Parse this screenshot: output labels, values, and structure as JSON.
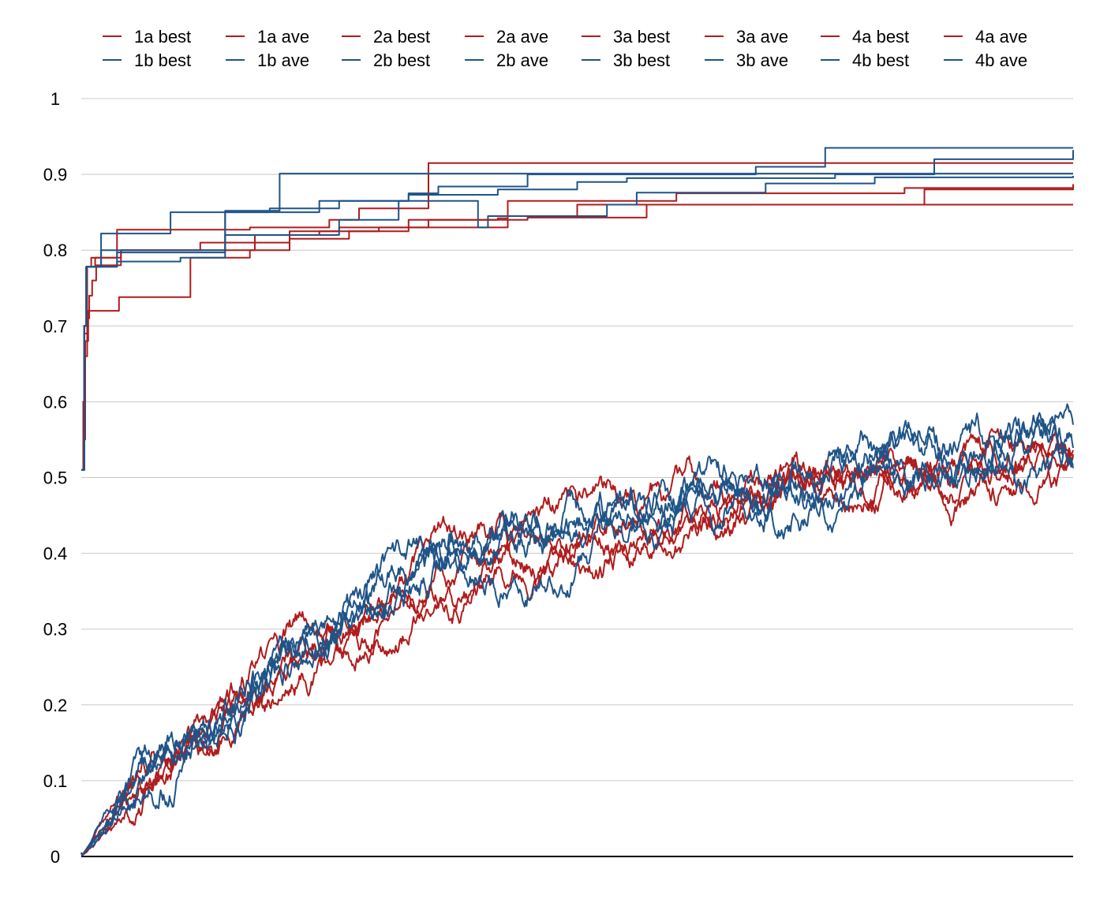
{
  "chart_data": {
    "type": "line",
    "title": "",
    "xlabel": "",
    "ylabel": "",
    "ylim": [
      0,
      1
    ],
    "yticks": [
      "0",
      "0.1",
      "0.2",
      "0.3",
      "0.4",
      "0.5",
      "0.6",
      "0.7",
      "0.8",
      "0.9",
      "1"
    ],
    "grid": "horizontal",
    "legend_position": "top",
    "x_tick_labels": "none",
    "colors": {
      "a_series": "#b01c1c",
      "b_series": "#1f5488",
      "grid": "#c8c8c8",
      "axis": "#000000"
    },
    "x_range": [
      0,
      1000
    ],
    "series": [
      {
        "name": "1a best",
        "group": "a",
        "kind": "best",
        "steps": [
          [
            0,
            0.51
          ],
          [
            2,
            0.55
          ],
          [
            4,
            0.66
          ],
          [
            6,
            0.71
          ],
          [
            8,
            0.74
          ],
          [
            11,
            0.76
          ],
          [
            15,
            0.78
          ],
          [
            40,
            0.8
          ],
          [
            120,
            0.81
          ],
          [
            210,
            0.825
          ],
          [
            260,
            0.83
          ],
          [
            350,
            0.84
          ],
          [
            450,
            0.843
          ],
          [
            570,
            0.86
          ],
          [
            850,
            0.88
          ],
          [
            1000,
            0.887
          ]
        ]
      },
      {
        "name": "1a ave",
        "group": "a",
        "kind": "ave",
        "asymptote": 0.5,
        "rate": 0.028,
        "noise": 0.03,
        "seed": 11
      },
      {
        "name": "2a best",
        "group": "a",
        "kind": "best",
        "steps": [
          [
            0,
            0.51
          ],
          [
            2,
            0.6
          ],
          [
            4,
            0.68
          ],
          [
            7,
            0.72
          ],
          [
            38,
            0.72
          ],
          [
            38,
            0.738
          ],
          [
            110,
            0.738
          ],
          [
            110,
            0.79
          ],
          [
            170,
            0.8
          ],
          [
            210,
            0.815
          ],
          [
            270,
            0.825
          ],
          [
            330,
            0.84
          ],
          [
            420,
            0.842
          ],
          [
            430,
            0.845
          ],
          [
            500,
            0.86
          ],
          [
            800,
            0.86
          ],
          [
            1000,
            0.86
          ]
        ]
      },
      {
        "name": "2a ave",
        "group": "a",
        "kind": "ave",
        "asymptote": 0.49,
        "rate": 0.024,
        "noise": 0.03,
        "seed": 23
      },
      {
        "name": "3a best",
        "group": "a",
        "kind": "best",
        "steps": [
          [
            0,
            0.51
          ],
          [
            3,
            0.7
          ],
          [
            6,
            0.778
          ],
          [
            10,
            0.79
          ],
          [
            36,
            0.827
          ],
          [
            170,
            0.83
          ],
          [
            250,
            0.84
          ],
          [
            280,
            0.855
          ],
          [
            350,
            0.857
          ],
          [
            350,
            0.915
          ],
          [
            1000,
            0.915
          ]
        ]
      },
      {
        "name": "3a ave",
        "group": "a",
        "kind": "ave",
        "asymptote": 0.51,
        "rate": 0.03,
        "noise": 0.032,
        "seed": 37
      },
      {
        "name": "4a best",
        "group": "a",
        "kind": "best",
        "steps": [
          [
            0,
            0.51
          ],
          [
            3,
            0.69
          ],
          [
            6,
            0.778
          ],
          [
            14,
            0.79
          ],
          [
            40,
            0.8
          ],
          [
            175,
            0.82
          ],
          [
            240,
            0.825
          ],
          [
            300,
            0.83
          ],
          [
            430,
            0.842
          ],
          [
            430,
            0.865
          ],
          [
            600,
            0.875
          ],
          [
            830,
            0.882
          ],
          [
            1000,
            0.887
          ]
        ]
      },
      {
        "name": "4a ave",
        "group": "a",
        "kind": "ave",
        "asymptote": 0.5,
        "rate": 0.026,
        "noise": 0.03,
        "seed": 41
      },
      {
        "name": "1b best",
        "group": "b",
        "kind": "best",
        "steps": [
          [
            0,
            0.51
          ],
          [
            3,
            0.7
          ],
          [
            5,
            0.778
          ],
          [
            20,
            0.778
          ],
          [
            20,
            0.822
          ],
          [
            90,
            0.822
          ],
          [
            90,
            0.85
          ],
          [
            120,
            0.85
          ],
          [
            145,
            0.852
          ],
          [
            200,
            0.852
          ],
          [
            200,
            0.901
          ],
          [
            1000,
            0.901
          ]
        ]
      },
      {
        "name": "1b ave",
        "group": "b",
        "kind": "ave",
        "asymptote": 0.52,
        "rate": 0.03,
        "noise": 0.035,
        "seed": 53
      },
      {
        "name": "2b best",
        "group": "b",
        "kind": "best",
        "steps": [
          [
            0,
            0.51
          ],
          [
            3,
            0.7
          ],
          [
            5,
            0.778
          ],
          [
            36,
            0.785
          ],
          [
            100,
            0.79
          ],
          [
            145,
            0.79
          ],
          [
            145,
            0.82
          ],
          [
            260,
            0.84
          ],
          [
            320,
            0.865
          ],
          [
            400,
            0.865
          ],
          [
            400,
            0.83
          ],
          [
            410,
            0.83
          ],
          [
            410,
            0.845
          ],
          [
            530,
            0.86
          ],
          [
            560,
            0.876
          ],
          [
            690,
            0.888
          ],
          [
            800,
            0.896
          ],
          [
            1000,
            0.898
          ]
        ]
      },
      {
        "name": "2b ave",
        "group": "b",
        "kind": "ave",
        "asymptote": 0.51,
        "rate": 0.028,
        "noise": 0.035,
        "seed": 67
      },
      {
        "name": "3b best",
        "group": "b",
        "kind": "best",
        "steps": [
          [
            0,
            0.51
          ],
          [
            3,
            0.7
          ],
          [
            5,
            0.778
          ],
          [
            36,
            0.797
          ],
          [
            120,
            0.797
          ],
          [
            145,
            0.85
          ],
          [
            190,
            0.855
          ],
          [
            260,
            0.865
          ],
          [
            330,
            0.875
          ],
          [
            360,
            0.884
          ],
          [
            450,
            0.9
          ],
          [
            680,
            0.91
          ],
          [
            750,
            0.91
          ],
          [
            750,
            0.935
          ],
          [
            1000,
            0.935
          ]
        ]
      },
      {
        "name": "3b ave",
        "group": "b",
        "kind": "ave",
        "asymptote": 0.53,
        "rate": 0.026,
        "noise": 0.036,
        "seed": 79
      },
      {
        "name": "4b best",
        "group": "b",
        "kind": "best",
        "steps": [
          [
            0,
            0.51
          ],
          [
            3,
            0.7
          ],
          [
            5,
            0.778
          ],
          [
            20,
            0.778
          ],
          [
            20,
            0.8
          ],
          [
            120,
            0.8
          ],
          [
            145,
            0.85
          ],
          [
            240,
            0.865
          ],
          [
            330,
            0.873
          ],
          [
            420,
            0.88
          ],
          [
            500,
            0.89
          ],
          [
            550,
            0.895
          ],
          [
            760,
            0.9
          ],
          [
            860,
            0.92
          ],
          [
            1000,
            0.932
          ]
        ]
      },
      {
        "name": "4b ave",
        "group": "b",
        "kind": "ave",
        "asymptote": 0.52,
        "rate": 0.025,
        "noise": 0.034,
        "seed": 97
      }
    ]
  }
}
